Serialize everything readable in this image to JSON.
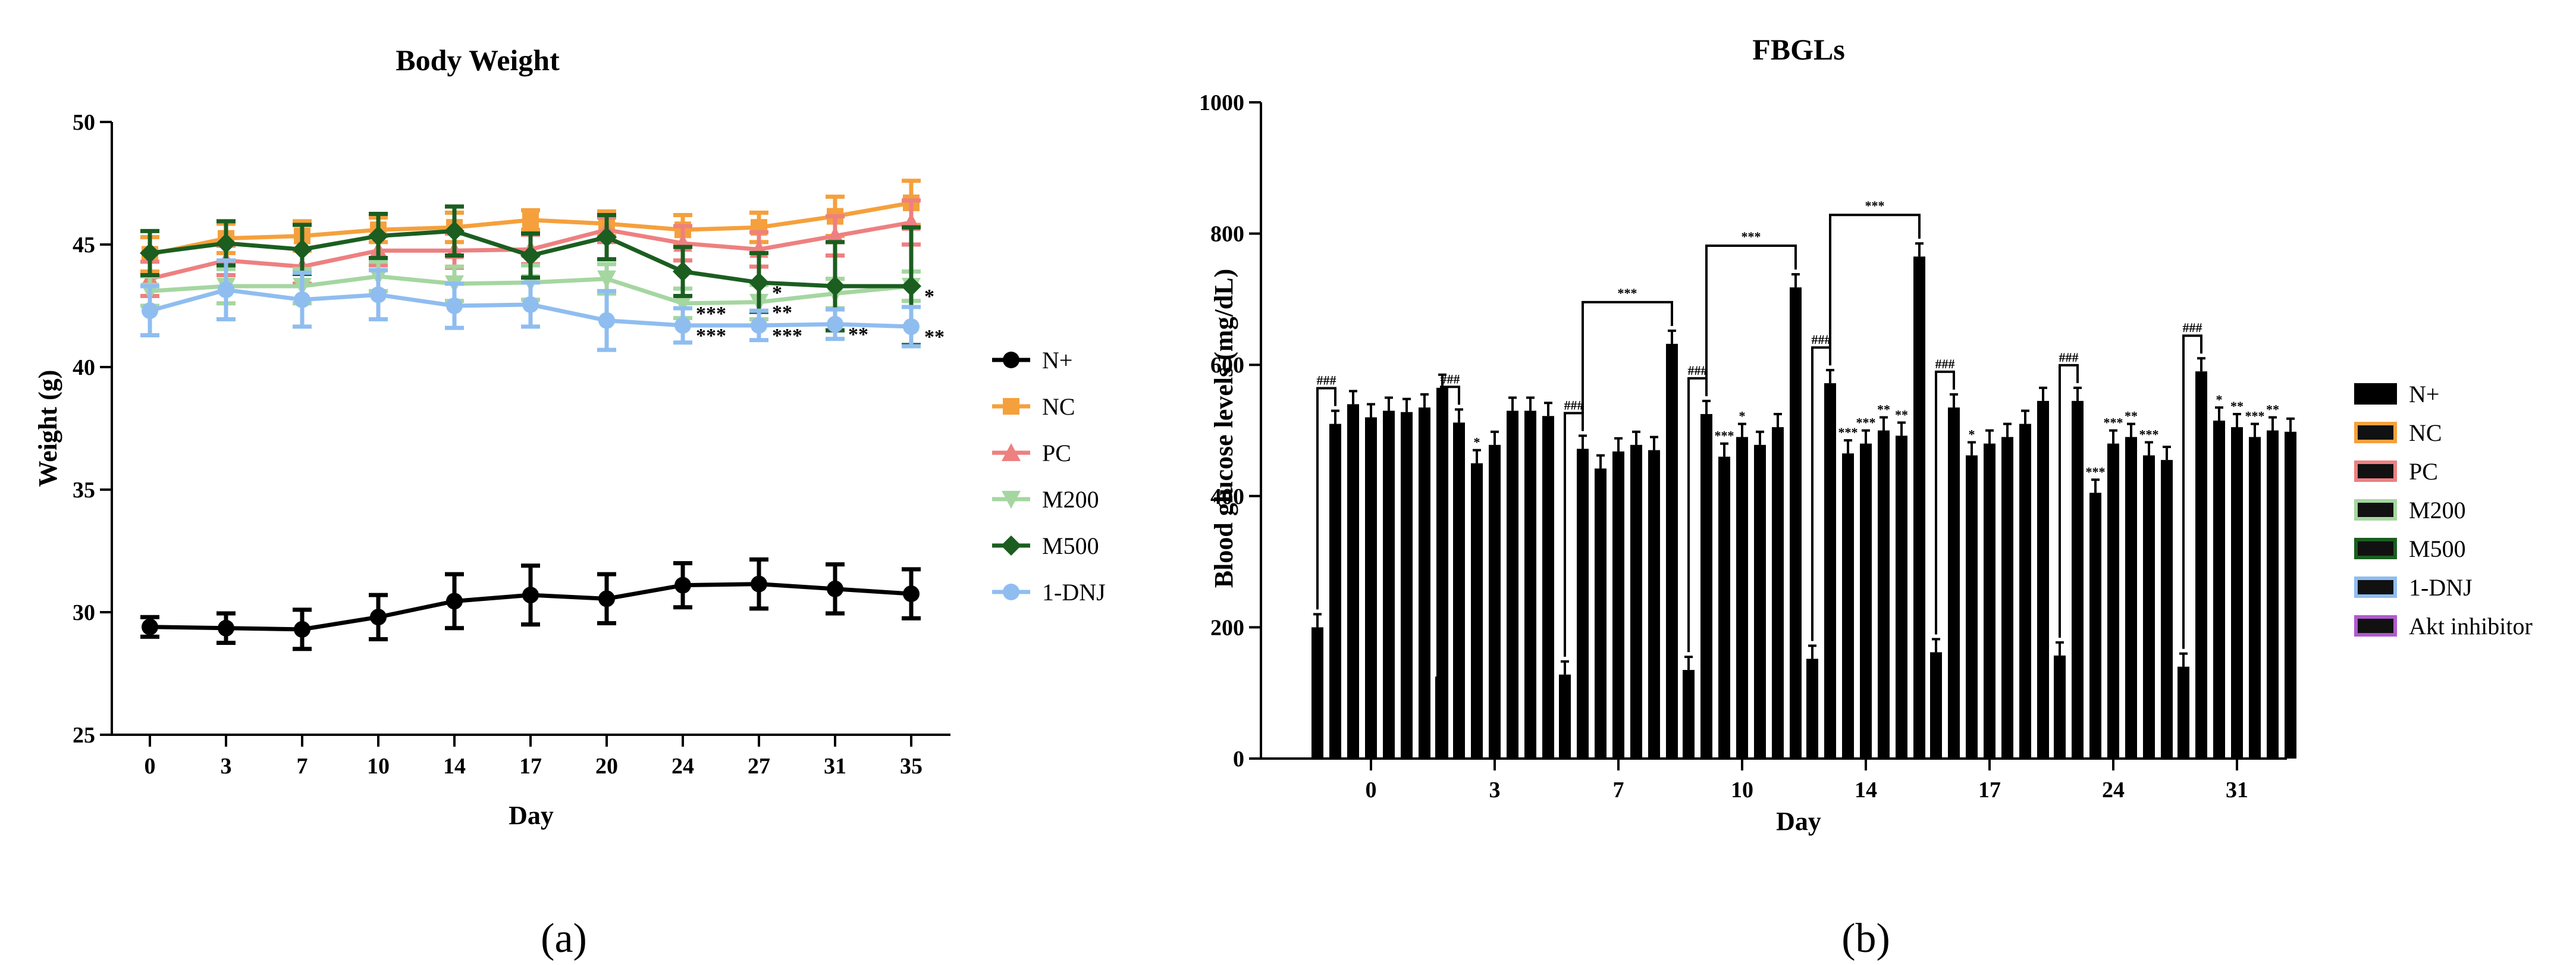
{
  "chart_data": [
    {
      "type": "line",
      "panel_label": "(a)",
      "title": "Body Weight",
      "xlabel": "Day",
      "ylabel": "Weight (g)",
      "categories": [
        "0",
        "3",
        "7",
        "10",
        "14",
        "17",
        "20",
        "24",
        "27",
        "31",
        "35"
      ],
      "ylim": [
        25,
        50
      ],
      "yticks": [
        "25",
        "30",
        "35",
        "40",
        "45",
        "50"
      ],
      "legend_position": "right",
      "series": [
        {
          "name": "N+",
          "color": "#000000",
          "marker": "circle",
          "values": [
            29.4,
            29.35,
            29.3,
            29.8,
            30.45,
            30.7,
            30.55,
            31.1,
            31.15,
            30.95,
            30.75
          ],
          "errors": [
            0.4,
            0.6,
            0.8,
            0.9,
            1.1,
            1.2,
            1.0,
            0.9,
            1.0,
            1.0,
            1.0
          ]
        },
        {
          "name": "NC",
          "color": "#f5a03c",
          "marker": "square",
          "values": [
            44.6,
            45.25,
            45.35,
            45.6,
            45.7,
            46.0,
            45.85,
            45.6,
            45.7,
            46.15,
            46.7
          ],
          "errors": [
            0.7,
            0.6,
            0.6,
            0.5,
            0.6,
            0.4,
            0.5,
            0.6,
            0.6,
            0.8,
            0.9
          ]
        },
        {
          "name": "PC",
          "color": "#ee8080",
          "marker": "triangle",
          "values": [
            43.6,
            44.35,
            44.1,
            44.75,
            44.75,
            44.8,
            45.6,
            45.05,
            44.8,
            45.35,
            45.9
          ],
          "errors": [
            0.7,
            0.6,
            0.7,
            0.6,
            0.7,
            0.6,
            0.5,
            0.7,
            0.7,
            0.8,
            0.9
          ]
        },
        {
          "name": "M200",
          "color": "#a5d6a0",
          "marker": "triangle-down",
          "values": [
            43.1,
            43.3,
            43.3,
            43.7,
            43.4,
            43.45,
            43.6,
            42.6,
            42.65,
            43.0,
            43.3
          ],
          "errors": [
            0.6,
            0.7,
            0.7,
            0.6,
            0.7,
            0.7,
            0.6,
            0.6,
            0.7,
            0.6,
            0.6
          ]
        },
        {
          "name": "M500",
          "color": "#1b5e20",
          "marker": "diamond",
          "values": [
            44.65,
            45.05,
            44.8,
            45.35,
            45.55,
            44.55,
            45.3,
            43.9,
            43.45,
            43.3,
            43.3
          ],
          "errors": [
            0.9,
            0.9,
            1.0,
            0.9,
            1.0,
            0.9,
            0.9,
            1.0,
            1.2,
            1.8,
            2.4
          ]
        },
        {
          "name": "1-DNJ",
          "color": "#8fbdf0",
          "marker": "circle",
          "values": [
            42.3,
            43.15,
            42.75,
            42.95,
            42.5,
            42.55,
            41.9,
            41.7,
            41.7,
            41.75,
            41.65
          ],
          "errors": [
            1.0,
            1.2,
            1.1,
            1.0,
            0.9,
            0.9,
            1.2,
            0.7,
            0.6,
            0.6,
            0.8
          ]
        }
      ],
      "annotations": [
        {
          "text": "***",
          "day": "24",
          "series": "M200",
          "color": "#a5d6a0"
        },
        {
          "text": "***",
          "day": "24",
          "series": "1-DNJ",
          "color": "#8fbdf0"
        },
        {
          "text": "**",
          "day": "27",
          "series": "M200",
          "color": "#a5d6a0"
        },
        {
          "text": "***",
          "day": "27",
          "series": "1-DNJ",
          "color": "#8fbdf0"
        },
        {
          "text": "*",
          "day": "27",
          "series": "M500",
          "color": "#1b5e20"
        },
        {
          "text": "**",
          "day": "31",
          "series": "1-DNJ",
          "color": "#8fbdf0"
        },
        {
          "text": "*",
          "day": "35",
          "series": "M500",
          "color": "#1b5e20"
        },
        {
          "text": "**",
          "day": "35",
          "series": "1-DNJ",
          "color": "#8fbdf0"
        }
      ]
    },
    {
      "type": "bar",
      "panel_label": "(b)",
      "title": "FBGLs",
      "xlabel": "Day",
      "ylabel": "Blood glucose levels (mg/dL)",
      "categories": [
        "0",
        "3",
        "7",
        "10",
        "14",
        "17",
        "24",
        "31"
      ],
      "ylim": [
        0,
        1000
      ],
      "yticks": [
        "0",
        "200",
        "400",
        "600",
        "800",
        "1000"
      ],
      "legend_position": "right",
      "series": [
        {
          "name": "N+",
          "color": "#000000",
          "values": [
            200,
            125,
            128,
            135,
            152,
            162,
            157,
            140
          ]
        },
        {
          "name": "NC",
          "color": "#f5a03c",
          "values": [
            510,
            512,
            472,
            525,
            572,
            535,
            545,
            590
          ]
        },
        {
          "name": "",
          "color": "#000000",
          "values": [
            540,
            450,
            442,
            460,
            465,
            462,
            405,
            515
          ]
        },
        {
          "name": "PC",
          "color": "#ee8080",
          "values": [
            520,
            478,
            468,
            490,
            480,
            480,
            480,
            505
          ]
        },
        {
          "name": "",
          "color": "#000000",
          "values": [
            530,
            530,
            478,
            478,
            500,
            490,
            490,
            490
          ]
        },
        {
          "name": "M200",
          "color": "#a5d6a0",
          "values": [
            528,
            530,
            470,
            505,
            492,
            510,
            462,
            500
          ]
        },
        {
          "name": "M500",
          "color": "#1b5e20",
          "values": [
            535,
            522,
            632,
            718,
            765,
            545,
            455,
            498
          ]
        },
        {
          "name": "1-DNJ",
          "color": "#8fbdf0",
          "values": [
            565,
            0,
            0,
            0,
            0,
            0,
            0,
            0
          ]
        },
        {
          "name": "Akt inhibitor",
          "color": "#b05ad0",
          "values": [
            0,
            0,
            0,
            0,
            0,
            0,
            0,
            0
          ]
        }
      ],
      "annotations": [
        {
          "text": "###",
          "day": "0"
        },
        {
          "text": "###",
          "day": "3"
        },
        {
          "text": "###",
          "day": "7"
        },
        {
          "text": "###",
          "day": "10"
        },
        {
          "text": "###",
          "day": "14"
        },
        {
          "text": "###",
          "day": "17"
        },
        {
          "text": "###",
          "day": "24"
        },
        {
          "text": "###",
          "day": "31"
        },
        {
          "text": "***",
          "day": "7"
        },
        {
          "text": "***",
          "day": "10"
        },
        {
          "text": "***",
          "day": "14"
        },
        {
          "text": "*",
          "day": "3"
        },
        {
          "text": "***",
          "day": "10"
        },
        {
          "text": "*",
          "day": "10"
        },
        {
          "text": "***",
          "day": "14"
        },
        {
          "text": "***",
          "day": "14"
        },
        {
          "text": "**",
          "day": "14"
        },
        {
          "text": "**",
          "day": "14"
        },
        {
          "text": "*",
          "day": "17"
        },
        {
          "text": "***",
          "day": "24"
        },
        {
          "text": "***",
          "day": "24"
        },
        {
          "text": "**",
          "day": "24"
        },
        {
          "text": "***",
          "day": "24"
        },
        {
          "text": "*",
          "day": "31"
        },
        {
          "text": "**",
          "day": "31"
        },
        {
          "text": "***",
          "day": "31"
        },
        {
          "text": "**",
          "day": "31"
        }
      ]
    }
  ]
}
